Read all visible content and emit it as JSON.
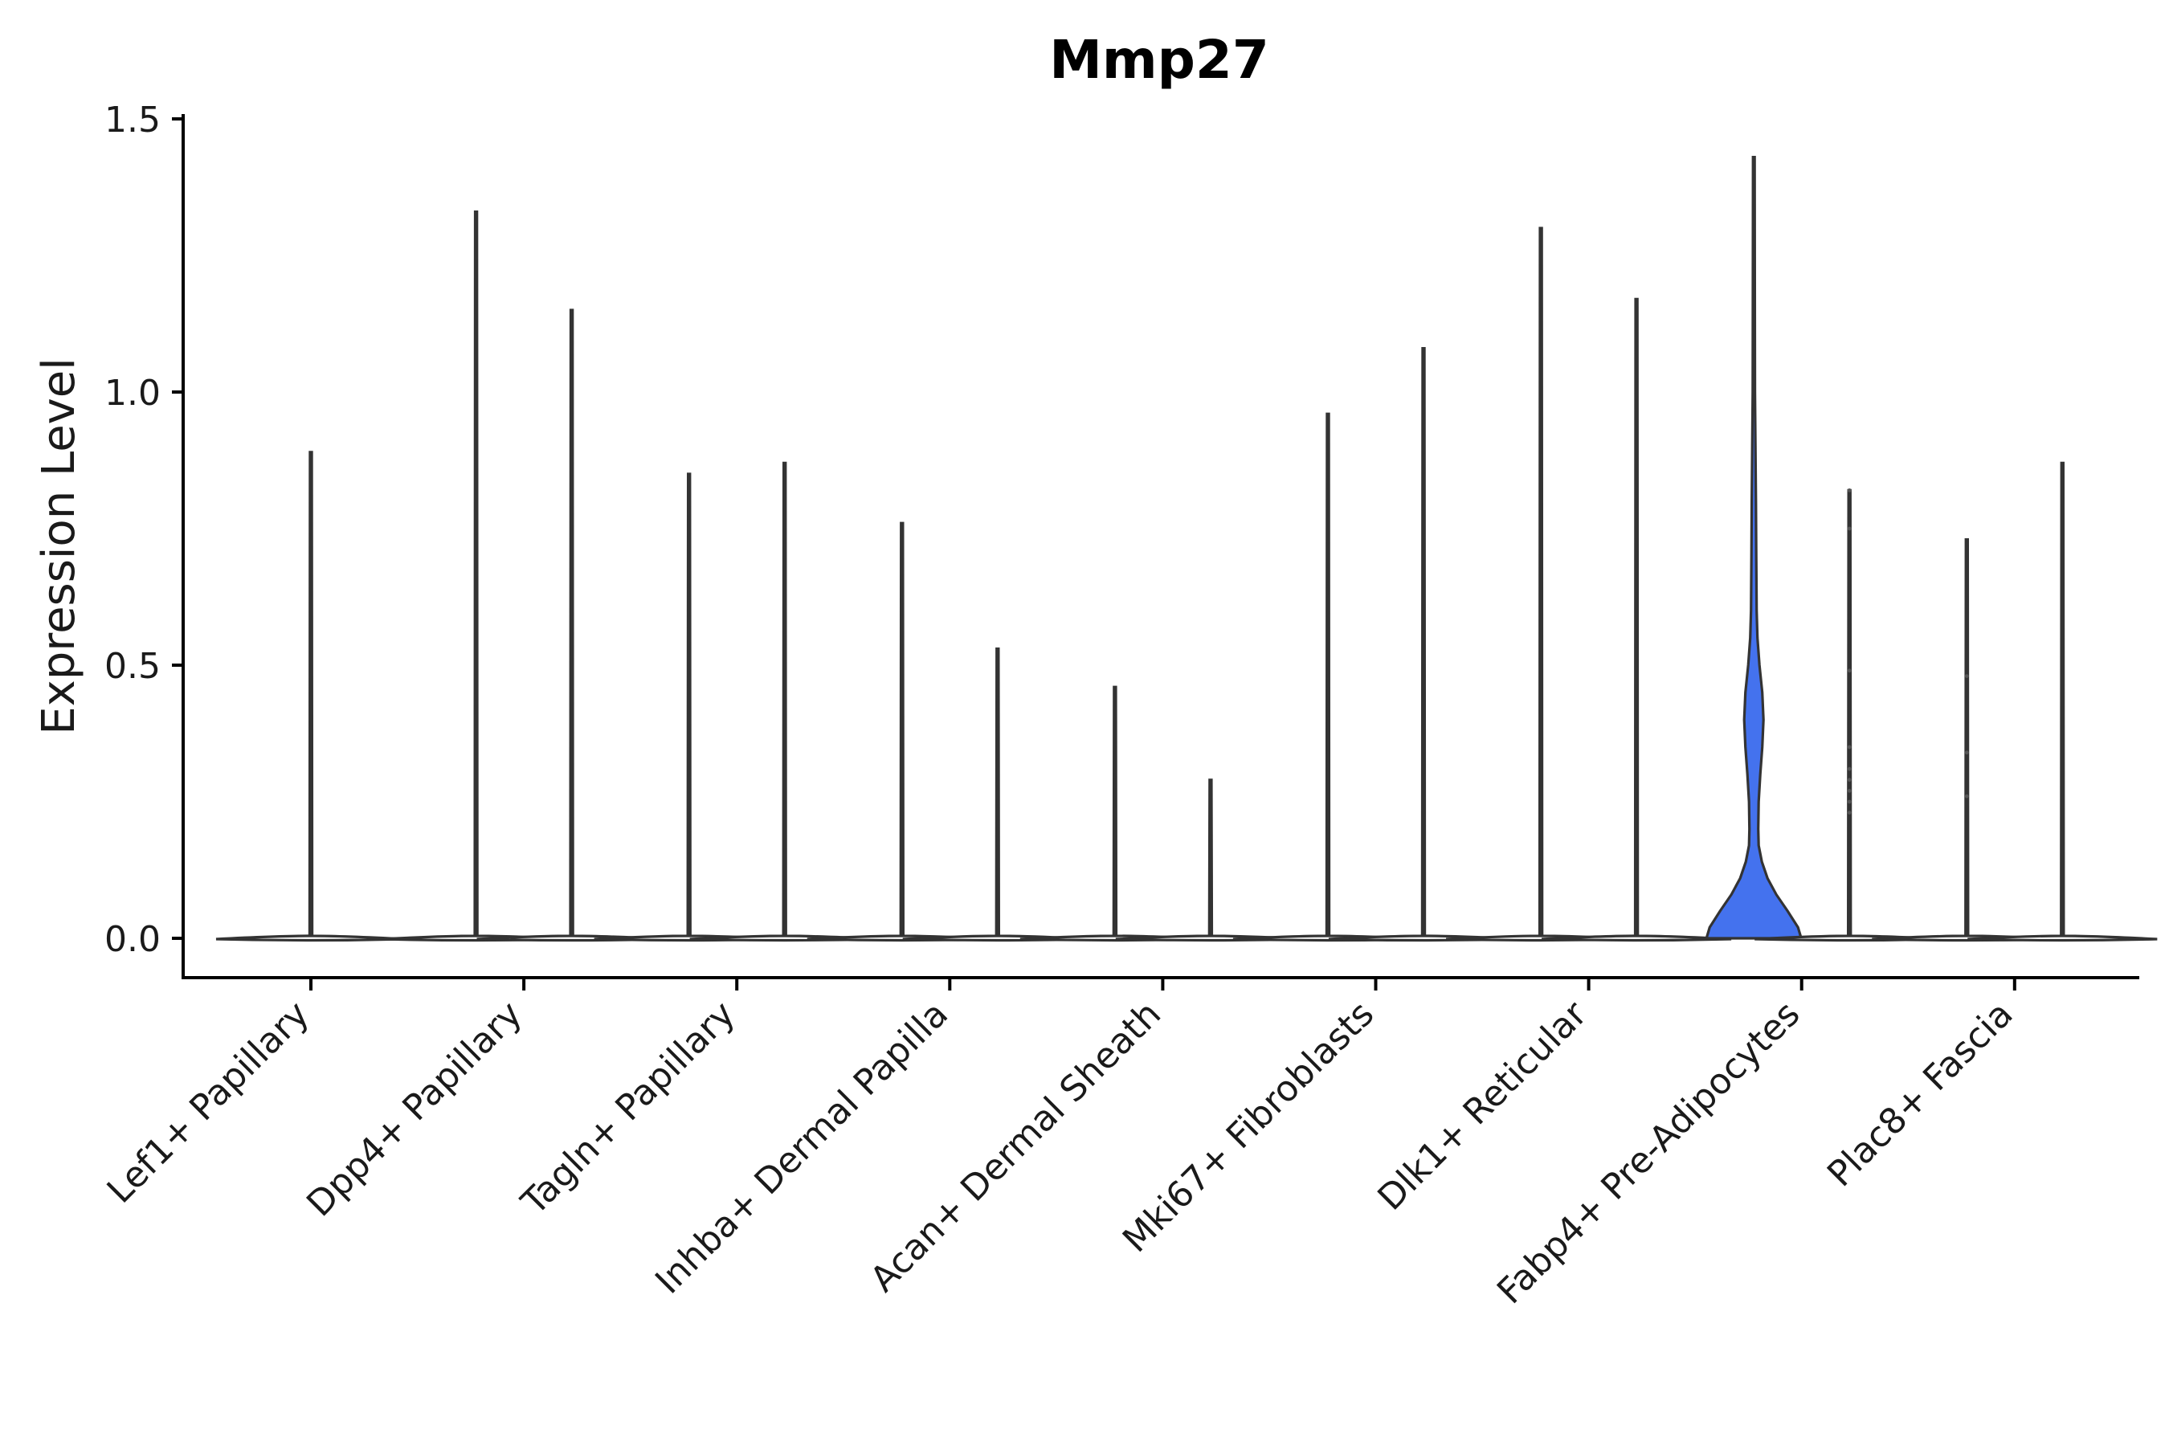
{
  "chart_data": {
    "type": "violin",
    "title": "Mmp27",
    "xlabel": "",
    "ylabel": "Expression Level",
    "ylim": [
      -0.07,
      1.5
    ],
    "yticks": [
      0.0,
      0.5,
      1.0,
      1.5
    ],
    "ytick_labels": [
      "0.0",
      "0.5",
      "1.0",
      "1.5"
    ],
    "categories": [
      "Lef1+ Papillary",
      "Dpp4+ Papillary",
      "Tagln+ Papillary",
      "Inhba+ Dermal Papilla",
      "Acan+ Dermal Sheath",
      "Mki67+ Fibroblasts",
      "Dlk1+ Reticular",
      "Fabp4+ Pre-Adipocytes",
      "Plac8+ Fascia"
    ],
    "groups": [
      {
        "category": "Lef1+ Papillary",
        "sub": [
          {
            "max": 0.89
          }
        ]
      },
      {
        "category": "Dpp4+ Papillary",
        "sub": [
          {
            "max": 1.33
          },
          {
            "max": 1.15
          }
        ]
      },
      {
        "category": "Tagln+ Papillary",
        "sub": [
          {
            "max": 0.85
          },
          {
            "max": 0.87
          }
        ]
      },
      {
        "category": "Inhba+ Dermal Papilla",
        "sub": [
          {
            "max": 0.76
          },
          {
            "max": 0.53
          }
        ]
      },
      {
        "category": "Acan+ Dermal Sheath",
        "sub": [
          {
            "max": 0.46
          },
          {
            "max": 0.29
          }
        ]
      },
      {
        "category": "Mki67+ Fibroblasts",
        "sub": [
          {
            "max": 0.96
          },
          {
            "max": 1.08
          }
        ]
      },
      {
        "category": "Dlk1+ Reticular",
        "sub": [
          {
            "max": 1.3
          },
          {
            "max": 1.17
          }
        ]
      },
      {
        "category": "Fabp4+ Pre-Adipocytes",
        "sub": [
          {
            "max": 1.43,
            "filled": true
          },
          {
            "max": 0.82,
            "points": [
              0.23,
              0.25,
              0.27,
              0.29,
              0.31,
              0.35,
              0.49,
              0.75,
              0.82
            ]
          }
        ]
      },
      {
        "category": "Plac8+ Fascia",
        "sub": [
          {
            "max": 0.73,
            "points": [
              0.26,
              0.34,
              0.48
            ]
          },
          {
            "max": 0.87
          }
        ]
      }
    ],
    "highlight_color": "#4472EE",
    "grid": false,
    "legend": "none"
  }
}
